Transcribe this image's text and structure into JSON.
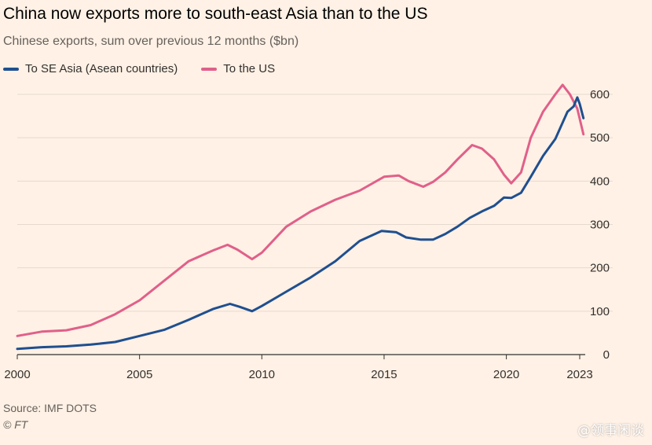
{
  "header": {
    "title": "China now exports more to south-east Asia than to the US",
    "subtitle": "Chinese exports, sum over previous 12 months ($bn)"
  },
  "footer": {
    "source": "Source: IMF DOTS",
    "credit": "© FT",
    "watermark": "@领事闲谈"
  },
  "colors": {
    "background": "#fff1e5",
    "se_asia": "#1f4f8f",
    "us": "#e0608a",
    "grid": "#e6d9ce",
    "axis": "#33302e",
    "tick_text": "#33302e"
  },
  "chart_data": {
    "type": "line",
    "title": "China now exports more to south-east Asia than to the US",
    "subtitle": "Chinese exports, sum over previous 12 months ($bn)",
    "xlabel": "",
    "ylabel": "",
    "xlim": [
      2000,
      2023
    ],
    "ylim": [
      0,
      600
    ],
    "x_ticks": [
      2000,
      2005,
      2010,
      2015,
      2020,
      2023
    ],
    "y_ticks": [
      0,
      100,
      200,
      300,
      400,
      500,
      600
    ],
    "y_axis_side": "right",
    "grid": "horizontal",
    "legend_position": "top-left",
    "series": [
      {
        "name": "To SE Asia (Asean countries)",
        "color": "#1f4f8f",
        "points": [
          [
            2000.0,
            13
          ],
          [
            2001.0,
            17
          ],
          [
            2002.0,
            19
          ],
          [
            2003.0,
            23
          ],
          [
            2004.0,
            29
          ],
          [
            2005.0,
            43
          ],
          [
            2006.0,
            57
          ],
          [
            2007.0,
            80
          ],
          [
            2008.0,
            105
          ],
          [
            2008.7,
            117
          ],
          [
            2009.1,
            110
          ],
          [
            2009.6,
            100
          ],
          [
            2010.0,
            112
          ],
          [
            2011.0,
            145
          ],
          [
            2012.0,
            178
          ],
          [
            2013.0,
            215
          ],
          [
            2014.0,
            262
          ],
          [
            2014.9,
            285
          ],
          [
            2015.5,
            282
          ],
          [
            2015.9,
            270
          ],
          [
            2016.5,
            265
          ],
          [
            2017.0,
            265
          ],
          [
            2017.5,
            278
          ],
          [
            2018.0,
            295
          ],
          [
            2018.5,
            315
          ],
          [
            2019.0,
            330
          ],
          [
            2019.5,
            343
          ],
          [
            2019.9,
            362
          ],
          [
            2020.2,
            361
          ],
          [
            2020.6,
            373
          ],
          [
            2021.0,
            410
          ],
          [
            2021.5,
            458
          ],
          [
            2022.0,
            497
          ],
          [
            2022.5,
            560
          ],
          [
            2022.75,
            572
          ],
          [
            2022.9,
            593
          ],
          [
            2023.0,
            578
          ],
          [
            2023.15,
            545
          ]
        ]
      },
      {
        "name": "To the US",
        "color": "#e0608a",
        "points": [
          [
            2000.0,
            43
          ],
          [
            2001.0,
            53
          ],
          [
            2002.0,
            56
          ],
          [
            2003.0,
            68
          ],
          [
            2004.0,
            93
          ],
          [
            2005.0,
            125
          ],
          [
            2006.0,
            170
          ],
          [
            2007.0,
            215
          ],
          [
            2008.0,
            240
          ],
          [
            2008.6,
            253
          ],
          [
            2009.0,
            242
          ],
          [
            2009.6,
            220
          ],
          [
            2010.0,
            235
          ],
          [
            2011.0,
            295
          ],
          [
            2012.0,
            330
          ],
          [
            2013.0,
            357
          ],
          [
            2014.0,
            378
          ],
          [
            2015.0,
            410
          ],
          [
            2015.6,
            413
          ],
          [
            2016.0,
            400
          ],
          [
            2016.6,
            387
          ],
          [
            2017.0,
            398
          ],
          [
            2017.5,
            420
          ],
          [
            2018.0,
            450
          ],
          [
            2018.6,
            483
          ],
          [
            2019.0,
            475
          ],
          [
            2019.5,
            450
          ],
          [
            2019.9,
            415
          ],
          [
            2020.2,
            395
          ],
          [
            2020.6,
            420
          ],
          [
            2021.0,
            500
          ],
          [
            2021.5,
            560
          ],
          [
            2022.0,
            600
          ],
          [
            2022.3,
            622
          ],
          [
            2022.6,
            600
          ],
          [
            2022.9,
            567
          ],
          [
            2023.1,
            520
          ],
          [
            2023.15,
            508
          ]
        ]
      }
    ]
  }
}
